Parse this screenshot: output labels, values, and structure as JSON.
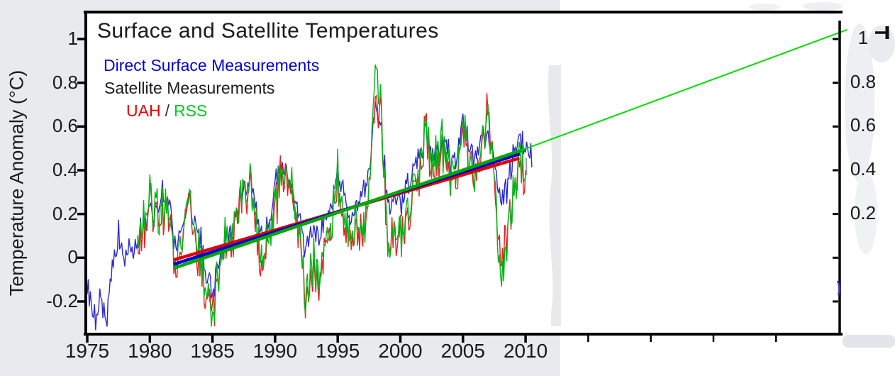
{
  "chart_data": {
    "type": "line",
    "title": "Surface and Satellite Temperatures",
    "ylabel": "Temperature Anomaly (°C)",
    "xlabel": "",
    "legend": {
      "surface": "Direct Surface Measurements",
      "satellite": "Satellite Measurements",
      "uah": "UAH",
      "separator": "/",
      "rss": "RSS"
    },
    "xlim": [
      1974.9,
      2035.1
    ],
    "ylim": [
      -0.35,
      1.12
    ],
    "grid": false,
    "legend_position": "top-left",
    "axes": {
      "left": {
        "ticks": [
          {
            "value": 1.0,
            "label": "1"
          },
          {
            "value": 0.8,
            "label": "0.8"
          },
          {
            "value": 0.6,
            "label": "0.6"
          },
          {
            "value": 0.4,
            "label": "0.4"
          },
          {
            "value": 0.2,
            "label": "0.2"
          },
          {
            "value": 0.0,
            "label": "0"
          },
          {
            "value": -0.2,
            "label": "-0.2"
          }
        ]
      },
      "right": {
        "ticks": [
          {
            "value": 1.0,
            "label": "1"
          },
          {
            "value": 0.8,
            "label": "0.8"
          },
          {
            "value": 0.6,
            "label": "0.6"
          },
          {
            "value": 0.4,
            "label": "0.4"
          },
          {
            "value": 0.2,
            "label": "0.2"
          },
          {
            "value": 0.0,
            "label": ""
          },
          {
            "value": -0.2,
            "label": ""
          }
        ]
      },
      "bottom": {
        "ticks": [
          {
            "value": 1975,
            "label": "1975"
          },
          {
            "value": 1980,
            "label": "1980"
          },
          {
            "value": 1985,
            "label": "1985"
          },
          {
            "value": 1990,
            "label": "1990"
          },
          {
            "value": 1995,
            "label": "1995"
          },
          {
            "value": 2000,
            "label": "2000"
          },
          {
            "value": 2005,
            "label": "2005"
          },
          {
            "value": 2010,
            "label": "2010"
          }
        ],
        "unlabeled_ticks": [
          2015,
          2020,
          2025,
          2030
        ]
      }
    },
    "series": [
      {
        "name": "Direct Surface Measurements",
        "color": "#2a2ad0",
        "start": 1975.0,
        "step": 0.5,
        "touch_left": true,
        "noise_shared": 0.055,
        "noise_own": 0.03,
        "values": [
          -0.12,
          -0.3,
          -0.18,
          -0.33,
          -0.05,
          0.1,
          0.02,
          0.05,
          0.08,
          0.15,
          0.22,
          0.18,
          0.32,
          0.22,
          0.05,
          0.08,
          0.3,
          0.2,
          0.1,
          -0.05,
          -0.18,
          0.0,
          0.1,
          0.08,
          0.25,
          0.3,
          0.35,
          0.25,
          0.1,
          0.15,
          0.35,
          0.4,
          0.38,
          0.3,
          0.15,
          0.05,
          0.12,
          0.1,
          0.18,
          0.25,
          0.4,
          0.3,
          0.15,
          0.25,
          0.3,
          0.4,
          0.72,
          0.55,
          0.28,
          0.25,
          0.25,
          0.3,
          0.45,
          0.45,
          0.55,
          0.5,
          0.5,
          0.55,
          0.45,
          0.45,
          0.6,
          0.55,
          0.45,
          0.55,
          0.6,
          0.45,
          0.25,
          0.3,
          0.45,
          0.55,
          0.5,
          0.48
        ]
      },
      {
        "name": "Satellite UAH",
        "color": "#e82020",
        "start": 1979.0,
        "step": 0.5,
        "touch_left": false,
        "noise_shared": 0.09,
        "noise_own": 0.05,
        "values": [
          0.05,
          0.12,
          0.25,
          0.15,
          0.25,
          0.15,
          -0.05,
          0.0,
          0.35,
          0.15,
          -0.05,
          -0.15,
          -0.27,
          -0.05,
          0.05,
          0.0,
          0.25,
          0.3,
          0.3,
          0.15,
          -0.05,
          0.1,
          0.25,
          0.35,
          0.4,
          0.3,
          0.05,
          -0.2,
          -0.05,
          -0.1,
          0.05,
          0.15,
          0.35,
          0.15,
          0.05,
          0.15,
          0.1,
          0.3,
          0.8,
          0.6,
          0.1,
          0.08,
          0.1,
          0.15,
          0.35,
          0.35,
          0.55,
          0.45,
          0.45,
          0.5,
          0.35,
          0.35,
          0.55,
          0.5,
          0.35,
          0.5,
          0.75,
          0.35,
          -0.05,
          0.05,
          0.25,
          0.45,
          0.35
        ]
      },
      {
        "name": "Satellite RSS",
        "color": "#00b414",
        "start": 1979.0,
        "step": 0.5,
        "touch_left": false,
        "noise_shared": 0.09,
        "noise_own": 0.05,
        "values": [
          0.08,
          0.15,
          0.28,
          0.18,
          0.28,
          0.18,
          -0.02,
          0.02,
          0.38,
          0.18,
          -0.02,
          -0.12,
          -0.32,
          -0.02,
          0.08,
          0.02,
          0.28,
          0.32,
          0.32,
          0.18,
          -0.02,
          0.12,
          0.28,
          0.38,
          0.42,
          0.32,
          0.08,
          -0.18,
          -0.02,
          -0.08,
          0.08,
          0.18,
          0.38,
          0.18,
          0.08,
          0.18,
          0.12,
          0.33,
          0.9,
          0.65,
          0.12,
          0.1,
          0.12,
          0.18,
          0.38,
          0.38,
          0.58,
          0.48,
          0.48,
          0.52,
          0.38,
          0.38,
          0.58,
          0.52,
          0.38,
          0.52,
          0.72,
          0.38,
          -0.1,
          0.02,
          0.28,
          0.48,
          0.38
        ]
      }
    ],
    "trend_lines": [
      {
        "name": "uah-trend",
        "color": "#e00000",
        "from": [
          1981.9,
          -0.01
        ],
        "to": [
          2009.5,
          0.455
        ]
      },
      {
        "name": "surface-trend",
        "color": "#0000d0",
        "from": [
          1981.9,
          -0.03
        ],
        "to": [
          2009.55,
          0.475
        ]
      },
      {
        "name": "rss-trend",
        "color": "#00a800",
        "from": [
          1981.95,
          -0.047
        ],
        "to": [
          2009.6,
          0.49
        ]
      }
    ],
    "extrapolation": {
      "name": "rss-trend-extended",
      "color": "#00dd00",
      "from": [
        2009.6,
        0.49
      ],
      "to": [
        2035.65,
        1.042
      ]
    },
    "right_cursor": {
      "description": "small right-pointing arrow marker beside the 1 label"
    }
  },
  "colors": {
    "background": "#e8eaee",
    "plot_background": "#ffffff",
    "axis": "#000000",
    "text": "#1a1a1a",
    "surface_blue": "#2a2ad0",
    "uah_red": "#e82020",
    "rss_green": "#00b414",
    "extrapolation_green": "#00dd00"
  }
}
